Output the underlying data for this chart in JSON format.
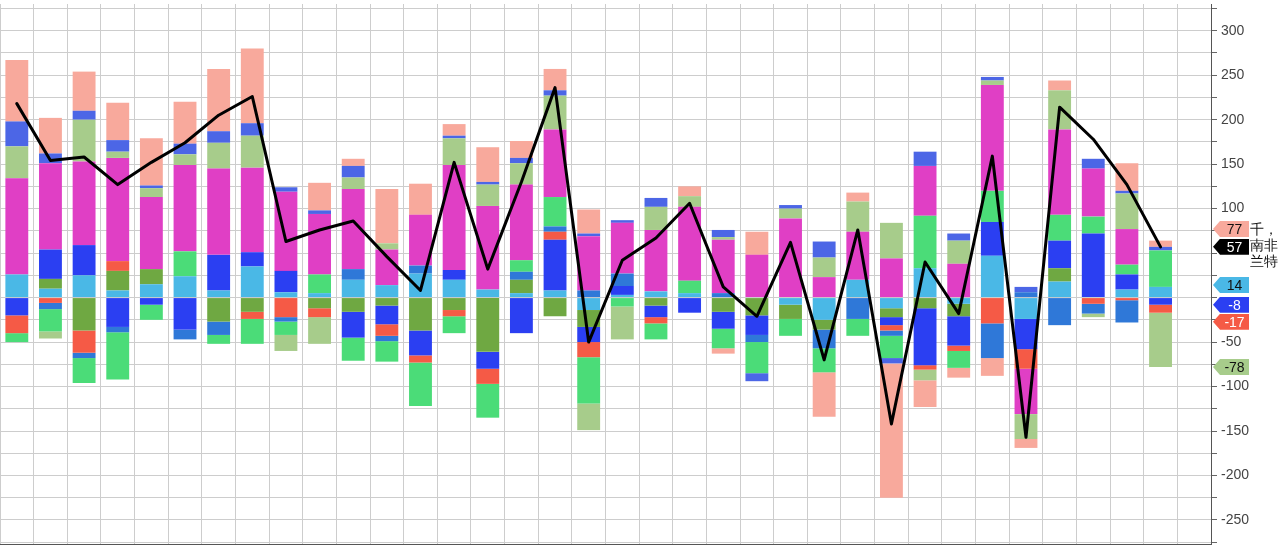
{
  "chart_data": {
    "type": "bar",
    "stacked": true,
    "categories": [
      null,
      null,
      null,
      null,
      null,
      null,
      null,
      null,
      null,
      null,
      null,
      null,
      null,
      null,
      null,
      null,
      null,
      null,
      null,
      null,
      null,
      null,
      null,
      null,
      null,
      null,
      null,
      null,
      null,
      null,
      null,
      null,
      null,
      null,
      null
    ],
    "series": [
      {
        "color": "#4ab8e6",
        "values": [
          26,
          10,
          25,
          8,
          15,
          24,
          8,
          35,
          6,
          5,
          20,
          14,
          27,
          20,
          9,
          5,
          8,
          -14,
          3,
          7,
          5,
          null,
          null,
          -8,
          -25,
          20,
          -12,
          33,
          -7,
          47,
          -24,
          18,
          null,
          9,
          12
        ]
      },
      {
        "color": "#6fa842",
        "values": [
          null,
          11,
          -37,
          22,
          17,
          null,
          -27,
          -16,
          null,
          -12,
          -16,
          -9,
          -37,
          -14,
          -61,
          15,
          -21,
          -19,
          null,
          -9,
          null,
          -16,
          -20,
          -16,
          -11,
          null,
          -10,
          -12,
          -14,
          null,
          null,
          15,
          null,
          null,
          null
        ]
      },
      {
        "color": "#2b3ff2",
        "values": [
          -20,
          33,
          34,
          -33,
          -8,
          -36,
          40,
          16,
          24,
          null,
          -29,
          -21,
          -28,
          11,
          -19,
          -40,
          57,
          -17,
          10,
          -13,
          -17,
          -19,
          -22,
          null,
          null,
          null,
          -9,
          -64,
          -33,
          38,
          -34,
          31,
          72,
          17,
          -8
        ]
      },
      {
        "color": "#f55a46",
        "values": [
          -20,
          -6,
          -25,
          11,
          null,
          null,
          null,
          -8,
          -22,
          -10,
          null,
          -13,
          -8,
          -7,
          -17,
          null,
          9,
          -17,
          null,
          -7,
          null,
          null,
          null,
          null,
          null,
          null,
          -6,
          -5,
          -6,
          -29,
          -22,
          null,
          -7,
          -3,
          -9
        ]
      },
      {
        "color": "#2f78d8",
        "values": [
          null,
          -7,
          -6,
          -6,
          null,
          -11,
          -15,
          null,
          -5,
          null,
          12,
          -6,
          9,
          null,
          null,
          9,
          6,
          8,
          14,
          null,
          null,
          5,
          -8,
          null,
          -21,
          -24,
          -6,
          null,
          null,
          -39,
          6,
          -31,
          -11,
          -25,
          null
        ]
      },
      {
        "color": "#4bdc78",
        "values": [
          -10,
          -25,
          -28,
          -53,
          -17,
          28,
          -10,
          -28,
          -15,
          21,
          -26,
          -23,
          -49,
          -19,
          -38,
          13,
          33,
          -52,
          -10,
          -18,
          14,
          -22,
          -35,
          -19,
          -27,
          -19,
          -25,
          59,
          -19,
          35,
          null,
          29,
          19,
          11,
          41
        ]
      },
      {
        "color": "#e03fc5",
        "values": [
          108,
          97,
          94,
          116,
          81,
          97,
          97,
          95,
          89,
          68,
          90,
          40,
          57,
          118,
          94,
          85,
          76,
          61,
          57,
          69,
          83,
          60,
          48,
          89,
          23,
          54,
          44,
          56,
          38,
          119,
          -51,
          96,
          54,
          40,
          null
        ]
      },
      {
        "color": "#a7cc8b",
        "values": [
          36,
          -8,
          47,
          7,
          10,
          12,
          29,
          36,
          -18,
          -30,
          13,
          7,
          null,
          30,
          24,
          24,
          38,
          -30,
          -37,
          26,
          12,
          3,
          null,
          11,
          22,
          34,
          40,
          -12,
          26,
          5,
          -28,
          44,
          -4,
          40,
          -61
        ]
      },
      {
        "color": "#4c66e6",
        "values": [
          28,
          11,
          10,
          13,
          3,
          12,
          13,
          14,
          5,
          4,
          13,
          null,
          null,
          3,
          3,
          6,
          6,
          3,
          3,
          10,
          null,
          8,
          -9,
          4,
          18,
          null,
          -6,
          16,
          8,
          4,
          6,
          null,
          11,
          3,
          4
        ]
      },
      {
        "color": "#f8a99c",
        "values": [
          69,
          40,
          44,
          42,
          53,
          47,
          70,
          84,
          null,
          31,
          8,
          61,
          35,
          13,
          39,
          19,
          24,
          27,
          null,
          null,
          11,
          -6,
          26,
          null,
          -50,
          10,
          -151,
          -30,
          -11,
          -20,
          -10,
          11,
          null,
          31,
          7
        ]
      },
      {
        "type": "line",
        "color": "#000000",
        "values": [
          218,
          154,
          158,
          127,
          152,
          174,
          205,
          226,
          63,
          76,
          86,
          46,
          8,
          152,
          32,
          130,
          236,
          -50,
          42,
          67,
          106,
          12,
          -21,
          62,
          -70,
          76,
          -142,
          40,
          -18,
          159,
          -157,
          214,
          178,
          127,
          57
        ]
      }
    ],
    "ylim": [
      -277,
      330
    ],
    "yticks": [
      {
        "value": -275,
        "label": null
      },
      -250,
      {
        "value": -225,
        "label": null
      },
      -200,
      {
        "value": -175,
        "label": null
      },
      -150,
      {
        "value": -125,
        "label": null
      },
      -100,
      {
        "value": -75,
        "label": null
      },
      -50,
      {
        "value": -25,
        "label": null
      },
      {
        "value": 0,
        "label": null
      },
      {
        "value": 25,
        "label": null
      },
      {
        "value": 50,
        "label": null
      },
      {
        "value": 75,
        "label": null
      },
      100,
      {
        "value": 125,
        "label": null
      },
      150,
      {
        "value": 175,
        "label": null
      },
      200,
      {
        "value": 225,
        "label": null
      },
      250,
      {
        "value": 275,
        "label": null
      },
      300,
      {
        "value": 325,
        "label": null
      }
    ],
    "grid": true,
    "tick_labels": "y",
    "ylabel": "千，南非兰特",
    "annotations": [
      "77",
      "57",
      "14",
      "-8",
      "-17",
      "-78"
    ]
  }
}
